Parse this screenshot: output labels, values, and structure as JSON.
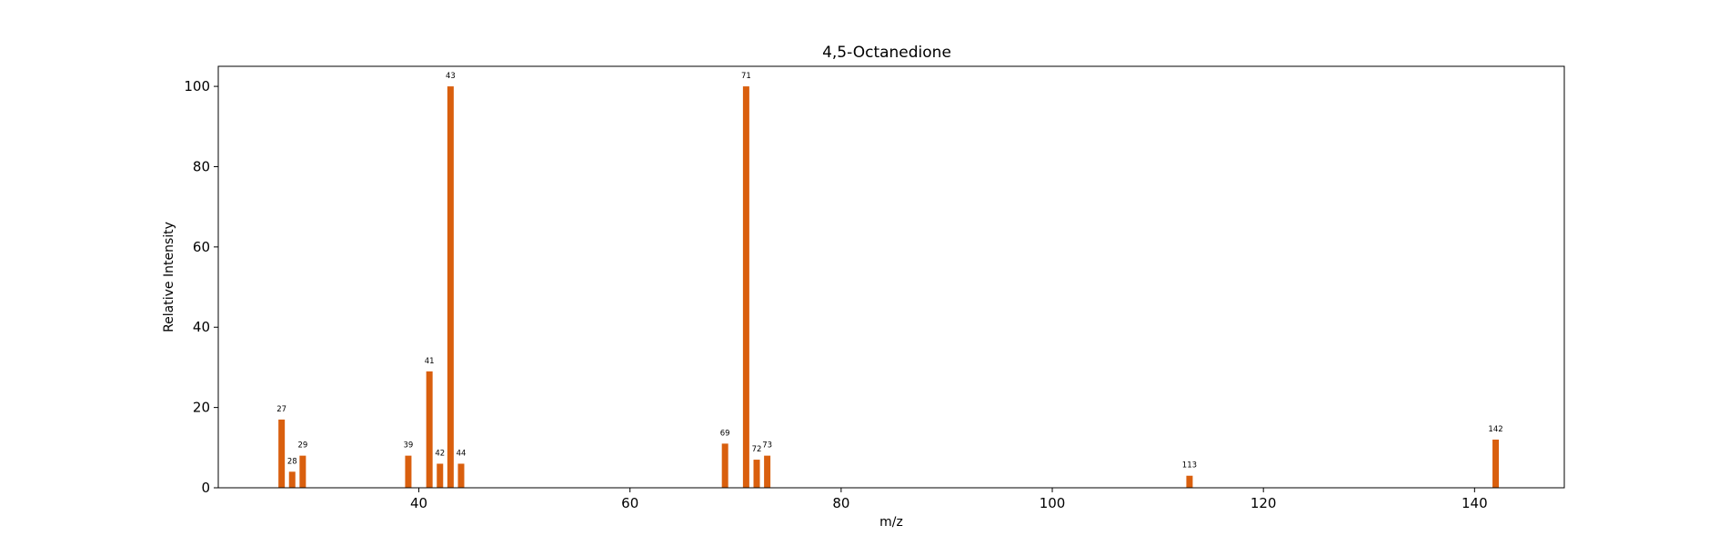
{
  "chart_data": {
    "type": "bar",
    "title": "4,5-Octanedione",
    "xlabel": "m/z",
    "ylabel": "Relative Intensity",
    "xlim": [
      21,
      148.5
    ],
    "ylim": [
      0,
      105
    ],
    "xticks": [
      40,
      60,
      80,
      100,
      120,
      140
    ],
    "yticks": [
      0,
      20,
      40,
      60,
      80,
      100
    ],
    "bar_color": "#d95f0e",
    "grid": false,
    "legend": "none",
    "series": [
      {
        "x": [
          27,
          28,
          29,
          39,
          41,
          42,
          43,
          44,
          69,
          71,
          72,
          73,
          113,
          142
        ],
        "values": [
          17,
          4,
          8,
          8,
          29,
          6,
          100,
          6,
          11,
          100,
          7,
          8,
          3,
          12
        ]
      }
    ]
  }
}
